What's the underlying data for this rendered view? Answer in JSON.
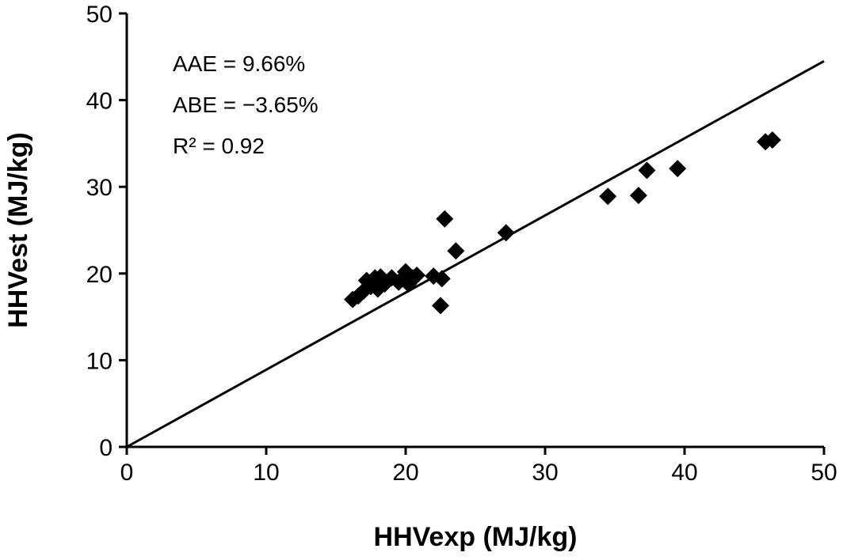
{
  "chart_data": {
    "type": "scatter",
    "xlabel": "HHVexp (MJ/kg)",
    "ylabel": "HHVest (MJ/kg)",
    "xlim": [
      0,
      50
    ],
    "ylim": [
      0,
      50
    ],
    "xticks": [
      "0",
      "10",
      "20",
      "30",
      "40",
      "50"
    ],
    "yticks": [
      "0",
      "10",
      "20",
      "30",
      "40",
      "50"
    ],
    "annotations": [
      "AAE = 9.66%",
      "ABE = −3.65%",
      "R² = 0.92"
    ],
    "line": {
      "slope": 0.89,
      "intercept": 0
    },
    "points": [
      [
        16.2,
        17.0
      ],
      [
        16.6,
        17.4
      ],
      [
        17.0,
        18.0
      ],
      [
        17.2,
        19.2
      ],
      [
        17.5,
        18.5
      ],
      [
        17.8,
        19.5
      ],
      [
        18.0,
        18.2
      ],
      [
        18.2,
        19.6
      ],
      [
        18.5,
        18.8
      ],
      [
        19.0,
        19.5
      ],
      [
        19.5,
        19.0
      ],
      [
        20.0,
        20.2
      ],
      [
        20.2,
        18.8
      ],
      [
        20.5,
        19.5
      ],
      [
        20.8,
        19.8
      ],
      [
        22.0,
        19.7
      ],
      [
        22.6,
        19.4
      ],
      [
        22.5,
        16.3
      ],
      [
        22.8,
        26.3
      ],
      [
        23.6,
        22.6
      ],
      [
        27.2,
        24.7
      ],
      [
        34.5,
        28.9
      ],
      [
        36.7,
        29.0
      ],
      [
        37.3,
        31.9
      ],
      [
        39.5,
        32.1
      ],
      [
        45.8,
        35.2
      ],
      [
        46.3,
        35.4
      ]
    ]
  }
}
